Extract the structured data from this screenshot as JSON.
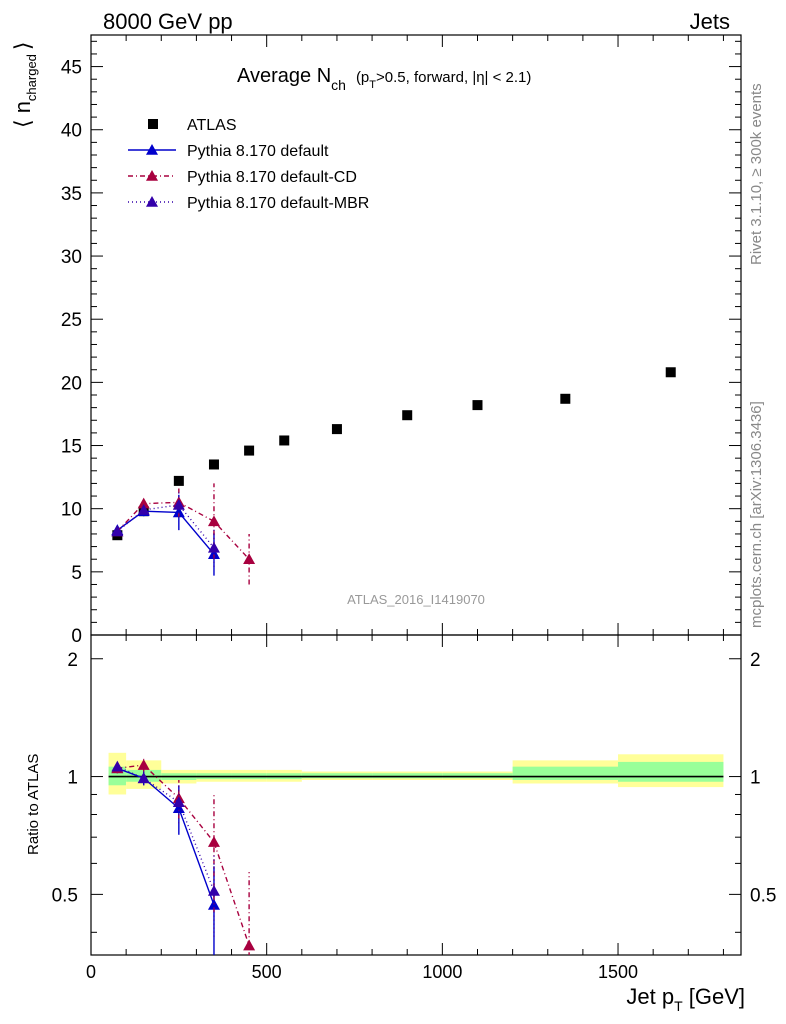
{
  "header": {
    "left": "8000 GeV pp",
    "right": "Jets"
  },
  "side": {
    "rivet": "Rivet 3.1.10, ≥ 300k events",
    "mcplots": "mcplots.cern.ch [arXiv:1306.3436]"
  },
  "chart_data": {
    "type": "scatter",
    "title_main": "Average N",
    "title_sub": "ch",
    "title_rest_a": "(p",
    "title_rest_sub": "T",
    "title_rest_b": ">0.5, forward, |η| < 2.1)",
    "analysis_label": "ATLAS_2016_I1419070",
    "xlabel_main": "Jet p",
    "xlabel_sub": "T",
    "xlabel_rest": " [GeV]",
    "ylabel_top_main": "⟨ n",
    "ylabel_top_sub": "charged",
    "ylabel_top_end": "⟩",
    "ylabel_bottom": "Ratio to ATLAS",
    "xlim": [
      0,
      1850
    ],
    "ylim_top": [
      0,
      47.5
    ],
    "ylim_ratio": [
      0.35,
      2.3
    ],
    "x_ticks": [
      "0",
      "500",
      "1000",
      "1500"
    ],
    "x_tick_values": [
      0,
      500,
      1000,
      1500
    ],
    "y_ticks_top": [
      "0",
      "5",
      "10",
      "15",
      "20",
      "25",
      "30",
      "35",
      "40",
      "45"
    ],
    "y_tick_values_top": [
      0,
      5,
      10,
      15,
      20,
      25,
      30,
      35,
      40,
      45
    ],
    "y_ticks_ratio": [
      "0.5",
      "1",
      "2"
    ],
    "y_tick_values_ratio": [
      0.5,
      1,
      2
    ],
    "legend": {
      "position": "top-left",
      "entries": [
        {
          "label": "ATLAS",
          "style": "data",
          "color": "#000000"
        },
        {
          "label": "Pythia 8.170 default",
          "style": "solid",
          "color": "#0000cc"
        },
        {
          "label": "Pythia 8.170 default-CD",
          "style": "dashdot",
          "color": "#a8003f"
        },
        {
          "label": "Pythia 8.170 default-MBR",
          "style": "dotted",
          "color": "#3300aa"
        }
      ]
    },
    "data": {
      "x": [
        75,
        150,
        250,
        350,
        450,
        550,
        700,
        900,
        1100,
        1350,
        1650
      ],
      "y": [
        7.9,
        9.8,
        12.2,
        13.5,
        14.6,
        15.4,
        16.3,
        17.4,
        18.2,
        18.7,
        20.8
      ],
      "band_edges": [
        50,
        100,
        200,
        300,
        400,
        500,
        600,
        800,
        1000,
        1200,
        1500,
        1800
      ],
      "band_green": [
        [
          0.95,
          1.06
        ],
        [
          0.97,
          1.04
        ],
        [
          0.98,
          1.02
        ],
        [
          0.985,
          1.02
        ],
        [
          0.985,
          1.02
        ],
        [
          0.985,
          1.02
        ],
        [
          0.99,
          1.02
        ],
        [
          0.99,
          1.02
        ],
        [
          0.99,
          1.02
        ],
        [
          0.98,
          1.06
        ],
        [
          0.97,
          1.09
        ]
      ],
      "band_yellow": [
        [
          0.9,
          1.15
        ],
        [
          0.93,
          1.1
        ],
        [
          0.96,
          1.04
        ],
        [
          0.97,
          1.04
        ],
        [
          0.97,
          1.04
        ],
        [
          0.97,
          1.04
        ],
        [
          0.98,
          1.03
        ],
        [
          0.98,
          1.03
        ],
        [
          0.98,
          1.03
        ],
        [
          0.96,
          1.1
        ],
        [
          0.94,
          1.14
        ]
      ]
    },
    "series": [
      {
        "name": "Pythia 8.170 default",
        "color": "#0000cc",
        "dash": "",
        "x": [
          75,
          150,
          250,
          350
        ],
        "y": [
          8.3,
          9.8,
          9.7,
          6.4
        ],
        "yerr": [
          0.3,
          0.4,
          1.4,
          1.7
        ],
        "ratio": [
          1.05,
          0.99,
          0.83,
          0.47
        ],
        "ratio_err": [
          0.03,
          0.04,
          0.12,
          0.12
        ]
      },
      {
        "name": "Pythia 8.170 default-CD",
        "color": "#a8003f",
        "dash": "5,3,1,3",
        "x": [
          75,
          150,
          250,
          350,
          450
        ],
        "y": [
          8.2,
          10.4,
          10.5,
          9.0,
          6.0
        ],
        "yerr": [
          0.3,
          0.4,
          1.2,
          3.0,
          2.0
        ],
        "ratio": [
          1.05,
          1.07,
          0.88,
          0.68,
          0.37
        ],
        "ratio_err": [
          0.03,
          0.04,
          0.1,
          0.23,
          0.2
        ]
      },
      {
        "name": "Pythia 8.170 default-MBR",
        "color": "#3300aa",
        "dash": "1,3",
        "x": [
          75,
          150,
          250,
          350
        ],
        "y": [
          8.2,
          9.9,
          10.3,
          6.9
        ],
        "yerr": [
          0.3,
          0.4,
          1.0,
          1.5
        ],
        "ratio": [
          1.06,
          0.99,
          0.86,
          0.51
        ],
        "ratio_err": [
          0.03,
          0.04,
          0.1,
          0.12
        ]
      }
    ]
  }
}
